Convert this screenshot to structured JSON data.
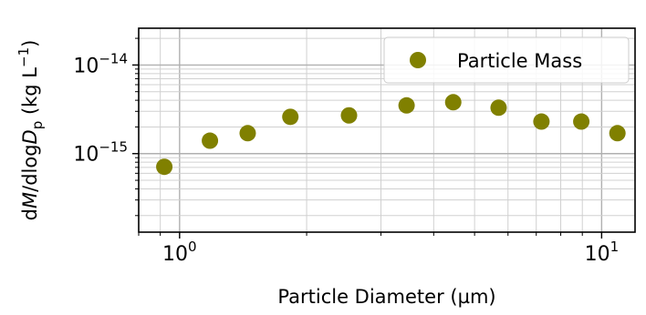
{
  "chart_data": {
    "type": "scatter",
    "xlabel": "Particle Diameter (µm)",
    "ylabel_parts": {
      "d1": "d",
      "M": "M",
      "slash": "/dlog",
      "D": "D",
      "sub": "p",
      "unit": " (kg L",
      "exp": "−1",
      "close": ")"
    },
    "x_scale": "log",
    "y_scale": "log",
    "xlim": [
      0.8,
      12
    ],
    "ylim": [
      1.3e-16,
      2.6e-14
    ],
    "x_ticks": [
      {
        "value": 1,
        "base": "10",
        "exp": "0"
      },
      {
        "value": 10,
        "base": "10",
        "exp": "1"
      }
    ],
    "y_ticks": [
      {
        "value": 1e-15,
        "base": "10",
        "exp": "−15"
      },
      {
        "value": 1e-14,
        "base": "10",
        "exp": "−14"
      }
    ],
    "grid": true,
    "grid_which": "both",
    "legend_position": "top-right",
    "series": [
      {
        "name": "Particle Mass",
        "color": "#808000",
        "marker": "circle",
        "x": [
          0.92,
          1.18,
          1.45,
          1.83,
          2.52,
          3.45,
          4.45,
          5.7,
          7.2,
          8.95,
          10.9
        ],
        "y": [
          7.1e-16,
          1.4e-15,
          1.7e-15,
          2.6e-15,
          2.7e-15,
          3.5e-15,
          3.8e-15,
          3.3e-15,
          2.3e-15,
          2.3e-15,
          1.7e-15
        ]
      }
    ]
  }
}
